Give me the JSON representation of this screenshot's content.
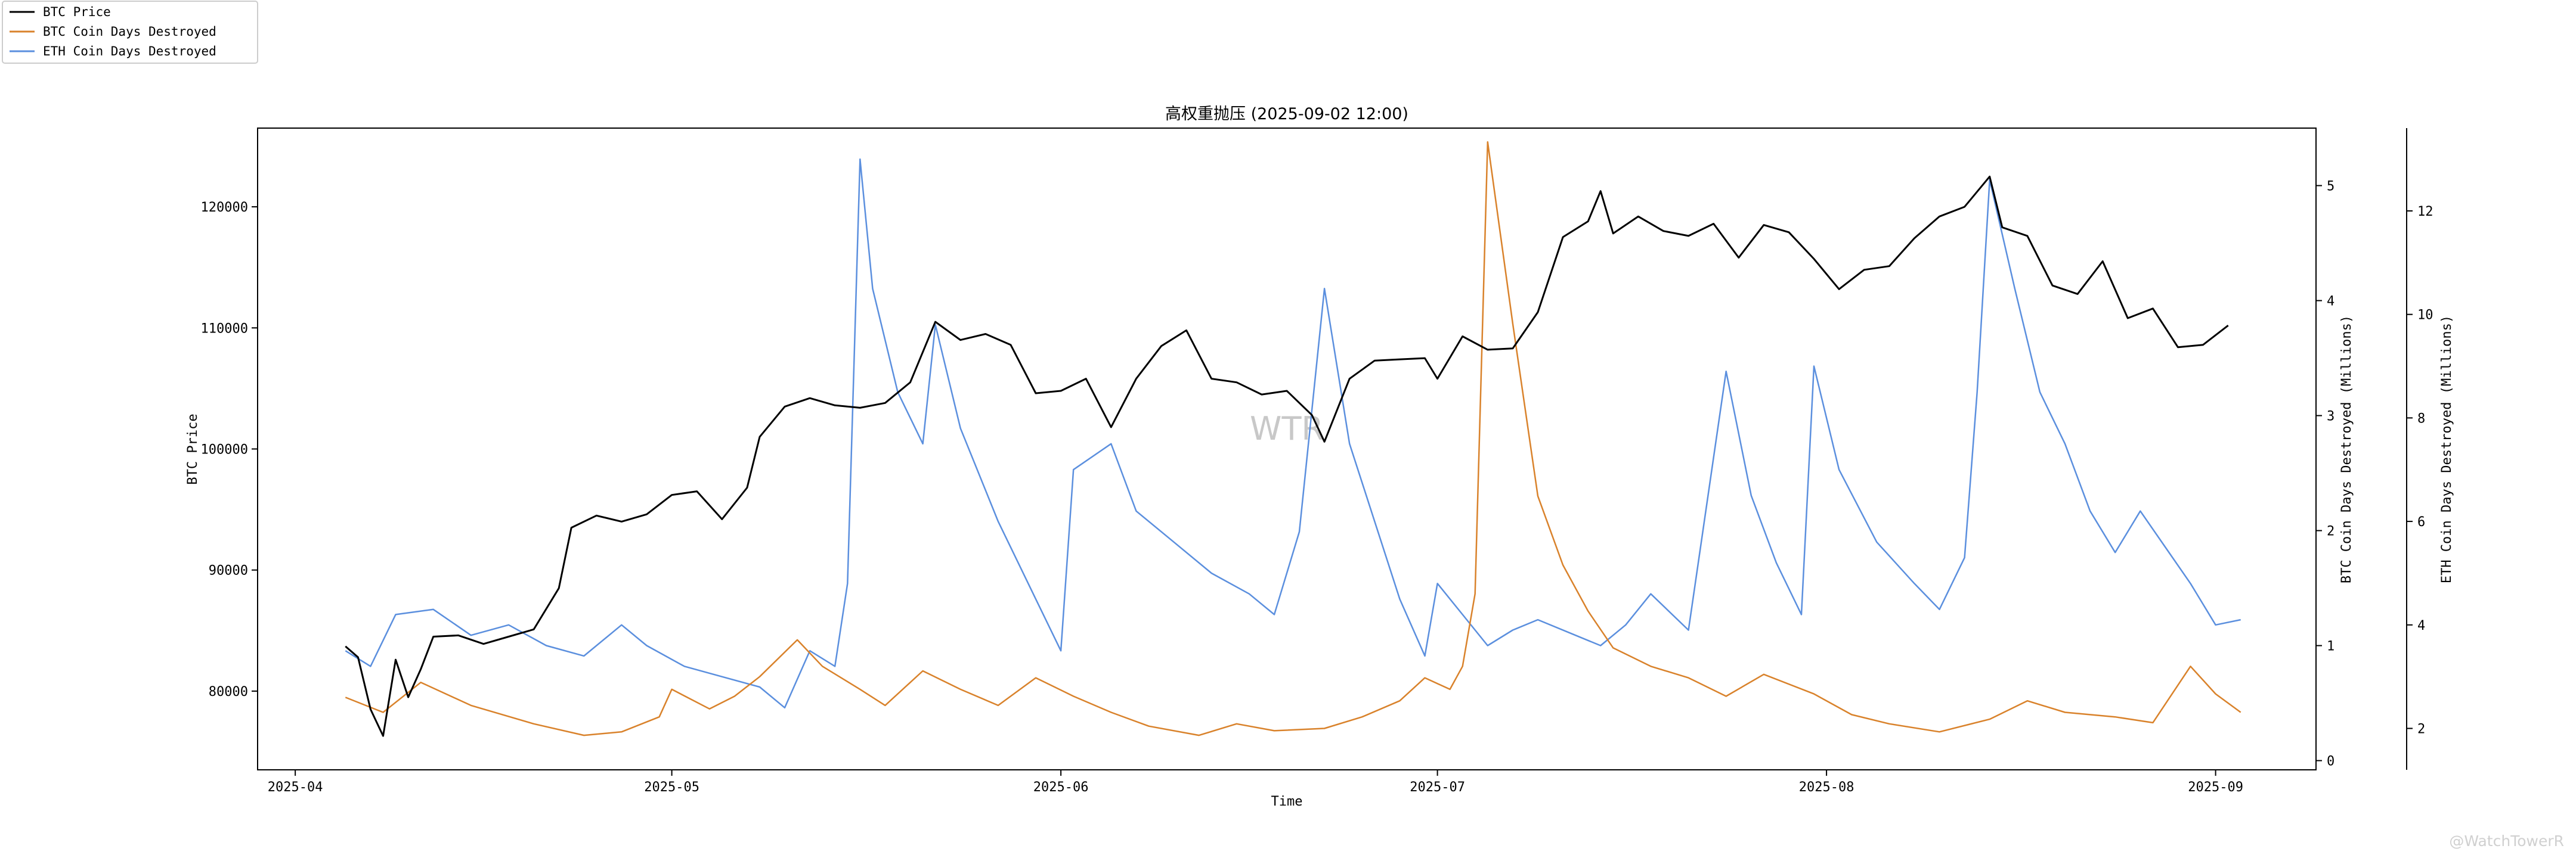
{
  "chart_data": {
    "type": "line",
    "title": "高权重抛压 (2025-09-02 12:00)",
    "xlabel": "Time",
    "ylabel_left": "BTC Price",
    "ylabel_right1": "BTC Coin Days Destroyed (Millions)",
    "ylabel_right2": "ETH Coin Days Destroyed (Millions)",
    "watermark_center": "WTR",
    "watermark_corner": "@WatchTowerR",
    "legend_position": "top-left",
    "grid": false,
    "xlim": [
      "2025-03-29",
      "2025-09-09"
    ],
    "x_ticks": [
      "2025-04",
      "2025-05",
      "2025-06",
      "2025-07",
      "2025-08",
      "2025-09"
    ],
    "axes": {
      "price": {
        "ylim": [
          73500,
          126500
        ],
        "ticks": [
          80000,
          90000,
          100000,
          110000,
          120000
        ]
      },
      "btc_cdd": {
        "ylim": [
          -0.08,
          5.5
        ],
        "ticks": [
          0,
          1,
          2,
          3,
          4,
          5
        ]
      },
      "eth_cdd": {
        "ylim": [
          1.2,
          13.6
        ],
        "ticks": [
          2,
          4,
          6,
          8,
          10,
          12
        ]
      }
    },
    "series": [
      {
        "name": "BTC Price",
        "axis": "price",
        "color": "#000000",
        "points": [
          [
            "2025-04-05",
            83700
          ],
          [
            "2025-04-06",
            82800
          ],
          [
            "2025-04-07",
            78500
          ],
          [
            "2025-04-08",
            76300
          ],
          [
            "2025-04-09",
            82600
          ],
          [
            "2025-04-10",
            79500
          ],
          [
            "2025-04-11",
            81800
          ],
          [
            "2025-04-12",
            84500
          ],
          [
            "2025-04-14",
            84600
          ],
          [
            "2025-04-16",
            83900
          ],
          [
            "2025-04-18",
            84500
          ],
          [
            "2025-04-20",
            85100
          ],
          [
            "2025-04-22",
            88500
          ],
          [
            "2025-04-23",
            93500
          ],
          [
            "2025-04-25",
            94500
          ],
          [
            "2025-04-27",
            94000
          ],
          [
            "2025-04-29",
            94600
          ],
          [
            "2025-05-01",
            96200
          ],
          [
            "2025-05-03",
            96500
          ],
          [
            "2025-05-05",
            94200
          ],
          [
            "2025-05-07",
            96800
          ],
          [
            "2025-05-08",
            101000
          ],
          [
            "2025-05-10",
            103500
          ],
          [
            "2025-05-12",
            104200
          ],
          [
            "2025-05-14",
            103600
          ],
          [
            "2025-05-16",
            103400
          ],
          [
            "2025-05-18",
            103800
          ],
          [
            "2025-05-20",
            105500
          ],
          [
            "2025-05-22",
            110500
          ],
          [
            "2025-05-24",
            109000
          ],
          [
            "2025-05-26",
            109500
          ],
          [
            "2025-05-28",
            108600
          ],
          [
            "2025-05-30",
            104600
          ],
          [
            "2025-06-01",
            104800
          ],
          [
            "2025-06-03",
            105800
          ],
          [
            "2025-06-05",
            101800
          ],
          [
            "2025-06-07",
            105800
          ],
          [
            "2025-06-09",
            108500
          ],
          [
            "2025-06-11",
            109800
          ],
          [
            "2025-06-13",
            105800
          ],
          [
            "2025-06-15",
            105500
          ],
          [
            "2025-06-17",
            104500
          ],
          [
            "2025-06-19",
            104800
          ],
          [
            "2025-06-21",
            102800
          ],
          [
            "2025-06-22",
            100600
          ],
          [
            "2025-06-24",
            105800
          ],
          [
            "2025-06-26",
            107300
          ],
          [
            "2025-06-28",
            107400
          ],
          [
            "2025-06-30",
            107500
          ],
          [
            "2025-07-01",
            105800
          ],
          [
            "2025-07-03",
            109300
          ],
          [
            "2025-07-05",
            108200
          ],
          [
            "2025-07-07",
            108300
          ],
          [
            "2025-07-09",
            111300
          ],
          [
            "2025-07-11",
            117500
          ],
          [
            "2025-07-13",
            118800
          ],
          [
            "2025-07-14",
            121300
          ],
          [
            "2025-07-15",
            117800
          ],
          [
            "2025-07-17",
            119200
          ],
          [
            "2025-07-19",
            118000
          ],
          [
            "2025-07-21",
            117600
          ],
          [
            "2025-07-23",
            118600
          ],
          [
            "2025-07-25",
            115800
          ],
          [
            "2025-07-27",
            118500
          ],
          [
            "2025-07-29",
            117900
          ],
          [
            "2025-07-31",
            115700
          ],
          [
            "2025-08-02",
            113200
          ],
          [
            "2025-08-04",
            114800
          ],
          [
            "2025-08-06",
            115100
          ],
          [
            "2025-08-08",
            117400
          ],
          [
            "2025-08-10",
            119200
          ],
          [
            "2025-08-12",
            120000
          ],
          [
            "2025-08-14",
            122500
          ],
          [
            "2025-08-15",
            118300
          ],
          [
            "2025-08-17",
            117600
          ],
          [
            "2025-08-19",
            113500
          ],
          [
            "2025-08-21",
            112800
          ],
          [
            "2025-08-23",
            115500
          ],
          [
            "2025-08-25",
            110800
          ],
          [
            "2025-08-27",
            111600
          ],
          [
            "2025-08-29",
            108400
          ],
          [
            "2025-08-31",
            108600
          ],
          [
            "2025-09-02",
            110200
          ]
        ]
      },
      {
        "name": "BTC Coin Days Destroyed",
        "axis": "btc_cdd",
        "color": "#d9822b",
        "points": [
          [
            "2025-04-05",
            0.55
          ],
          [
            "2025-04-08",
            0.42
          ],
          [
            "2025-04-11",
            0.68
          ],
          [
            "2025-04-15",
            0.48
          ],
          [
            "2025-04-20",
            0.32
          ],
          [
            "2025-04-24",
            0.22
          ],
          [
            "2025-04-27",
            0.25
          ],
          [
            "2025-04-30",
            0.38
          ],
          [
            "2025-05-01",
            0.62
          ],
          [
            "2025-05-04",
            0.45
          ],
          [
            "2025-05-06",
            0.56
          ],
          [
            "2025-05-08",
            0.73
          ],
          [
            "2025-05-11",
            1.05
          ],
          [
            "2025-05-13",
            0.82
          ],
          [
            "2025-05-16",
            0.62
          ],
          [
            "2025-05-18",
            0.48
          ],
          [
            "2025-05-21",
            0.78
          ],
          [
            "2025-05-24",
            0.62
          ],
          [
            "2025-05-27",
            0.48
          ],
          [
            "2025-05-30",
            0.72
          ],
          [
            "2025-06-02",
            0.56
          ],
          [
            "2025-06-05",
            0.42
          ],
          [
            "2025-06-08",
            0.3
          ],
          [
            "2025-06-12",
            0.22
          ],
          [
            "2025-06-15",
            0.32
          ],
          [
            "2025-06-18",
            0.26
          ],
          [
            "2025-06-22",
            0.28
          ],
          [
            "2025-06-25",
            0.38
          ],
          [
            "2025-06-28",
            0.52
          ],
          [
            "2025-06-30",
            0.72
          ],
          [
            "2025-07-02",
            0.62
          ],
          [
            "2025-07-03",
            0.82
          ],
          [
            "2025-07-04",
            1.45
          ],
          [
            "2025-07-05",
            5.38
          ],
          [
            "2025-07-07",
            3.8
          ],
          [
            "2025-07-09",
            2.3
          ],
          [
            "2025-07-11",
            1.7
          ],
          [
            "2025-07-13",
            1.3
          ],
          [
            "2025-07-15",
            0.98
          ],
          [
            "2025-07-18",
            0.82
          ],
          [
            "2025-07-21",
            0.72
          ],
          [
            "2025-07-24",
            0.56
          ],
          [
            "2025-07-27",
            0.75
          ],
          [
            "2025-07-31",
            0.58
          ],
          [
            "2025-08-03",
            0.4
          ],
          [
            "2025-08-06",
            0.32
          ],
          [
            "2025-08-10",
            0.25
          ],
          [
            "2025-08-14",
            0.36
          ],
          [
            "2025-08-17",
            0.52
          ],
          [
            "2025-08-20",
            0.42
          ],
          [
            "2025-08-24",
            0.38
          ],
          [
            "2025-08-27",
            0.33
          ],
          [
            "2025-08-30",
            0.82
          ],
          [
            "2025-09-01",
            0.58
          ],
          [
            "2025-09-03",
            0.42
          ]
        ]
      },
      {
        "name": "ETH Coin Days Destroyed",
        "axis": "eth_cdd",
        "color": "#5b8fde",
        "points": [
          [
            "2025-04-05",
            3.5
          ],
          [
            "2025-04-07",
            3.2
          ],
          [
            "2025-04-09",
            4.2
          ],
          [
            "2025-04-12",
            4.3
          ],
          [
            "2025-04-15",
            3.8
          ],
          [
            "2025-04-18",
            4.0
          ],
          [
            "2025-04-21",
            3.6
          ],
          [
            "2025-04-24",
            3.4
          ],
          [
            "2025-04-27",
            4.0
          ],
          [
            "2025-04-29",
            3.6
          ],
          [
            "2025-05-02",
            3.2
          ],
          [
            "2025-05-05",
            3.0
          ],
          [
            "2025-05-08",
            2.8
          ],
          [
            "2025-05-10",
            2.4
          ],
          [
            "2025-05-12",
            3.5
          ],
          [
            "2025-05-14",
            3.2
          ],
          [
            "2025-05-15",
            4.8
          ],
          [
            "2025-05-16",
            13.0
          ],
          [
            "2025-05-17",
            10.5
          ],
          [
            "2025-05-19",
            8.5
          ],
          [
            "2025-05-21",
            7.5
          ],
          [
            "2025-05-22",
            9.8
          ],
          [
            "2025-05-24",
            7.8
          ],
          [
            "2025-05-27",
            6.0
          ],
          [
            "2025-05-30",
            4.5
          ],
          [
            "2025-06-01",
            3.5
          ],
          [
            "2025-06-02",
            7.0
          ],
          [
            "2025-06-05",
            7.5
          ],
          [
            "2025-06-07",
            6.2
          ],
          [
            "2025-06-10",
            5.6
          ],
          [
            "2025-06-13",
            5.0
          ],
          [
            "2025-06-16",
            4.6
          ],
          [
            "2025-06-18",
            4.2
          ],
          [
            "2025-06-20",
            5.8
          ],
          [
            "2025-06-22",
            10.5
          ],
          [
            "2025-06-24",
            7.5
          ],
          [
            "2025-06-26",
            6.0
          ],
          [
            "2025-06-28",
            4.5
          ],
          [
            "2025-06-30",
            3.4
          ],
          [
            "2025-07-01",
            4.8
          ],
          [
            "2025-07-03",
            4.2
          ],
          [
            "2025-07-05",
            3.6
          ],
          [
            "2025-07-07",
            3.9
          ],
          [
            "2025-07-09",
            4.1
          ],
          [
            "2025-07-12",
            3.8
          ],
          [
            "2025-07-14",
            3.6
          ],
          [
            "2025-07-16",
            4.0
          ],
          [
            "2025-07-18",
            4.6
          ],
          [
            "2025-07-21",
            3.9
          ],
          [
            "2025-07-24",
            8.9
          ],
          [
            "2025-07-26",
            6.5
          ],
          [
            "2025-07-28",
            5.2
          ],
          [
            "2025-07-30",
            4.2
          ],
          [
            "2025-07-31",
            9.0
          ],
          [
            "2025-08-02",
            7.0
          ],
          [
            "2025-08-05",
            5.6
          ],
          [
            "2025-08-08",
            4.8
          ],
          [
            "2025-08-10",
            4.3
          ],
          [
            "2025-08-12",
            5.3
          ],
          [
            "2025-08-13",
            8.5
          ],
          [
            "2025-08-14",
            12.6
          ],
          [
            "2025-08-16",
            10.5
          ],
          [
            "2025-08-18",
            8.5
          ],
          [
            "2025-08-20",
            7.5
          ],
          [
            "2025-08-22",
            6.2
          ],
          [
            "2025-08-24",
            5.4
          ],
          [
            "2025-08-26",
            6.2
          ],
          [
            "2025-08-28",
            5.5
          ],
          [
            "2025-08-30",
            4.8
          ],
          [
            "2025-09-01",
            4.0
          ],
          [
            "2025-09-03",
            4.1
          ]
        ]
      }
    ]
  }
}
